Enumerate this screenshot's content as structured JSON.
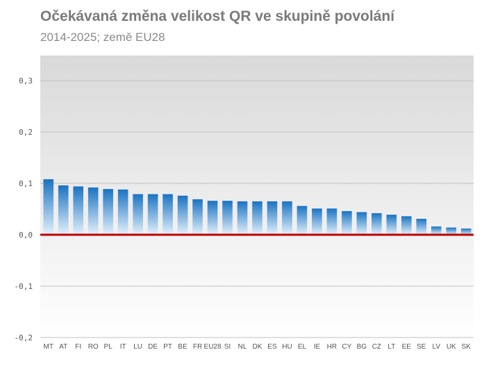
{
  "title": "Očekávaná změna velikost QR ve skupině povolání",
  "subtitle": "2014-2025; země EU28",
  "colors": {
    "bar_top": "#1a73c2",
    "bar_bottom": "#e4f1fb",
    "zero_line": "#c00000",
    "grid": "#bfbfbf"
  },
  "chart_data": {
    "type": "bar",
    "title": "Očekávaná změna velikost QR ve skupině povolání",
    "subtitle": "2014-2025; země EU28",
    "xlabel": "",
    "ylabel": "",
    "ylim": [
      -0.2,
      0.35
    ],
    "yticks": [
      -0.2,
      -0.1,
      0.0,
      0.1,
      0.2,
      0.3
    ],
    "ytick_labels": [
      "-0,2",
      "-0,1",
      "0,0",
      "0,1",
      "0,2",
      "0,3"
    ],
    "grid": true,
    "categories": [
      "MT",
      "AT",
      "FI",
      "RO",
      "PL",
      "IT",
      "LU",
      "DE",
      "PT",
      "BE",
      "FR",
      "EU28",
      "SI",
      "NL",
      "DK",
      "ES",
      "HU",
      "EL",
      "IE",
      "HR",
      "CY",
      "BG",
      "CZ",
      "LT",
      "EE",
      "SE",
      "LV",
      "UK",
      "SK"
    ],
    "values": [
      0.108,
      0.096,
      0.094,
      0.092,
      0.089,
      0.088,
      0.079,
      0.079,
      0.079,
      0.076,
      0.069,
      0.066,
      0.066,
      0.065,
      0.065,
      0.065,
      0.065,
      0.056,
      0.051,
      0.051,
      0.046,
      0.044,
      0.042,
      0.039,
      0.036,
      0.031,
      0.016,
      0.014,
      0.012
    ]
  }
}
